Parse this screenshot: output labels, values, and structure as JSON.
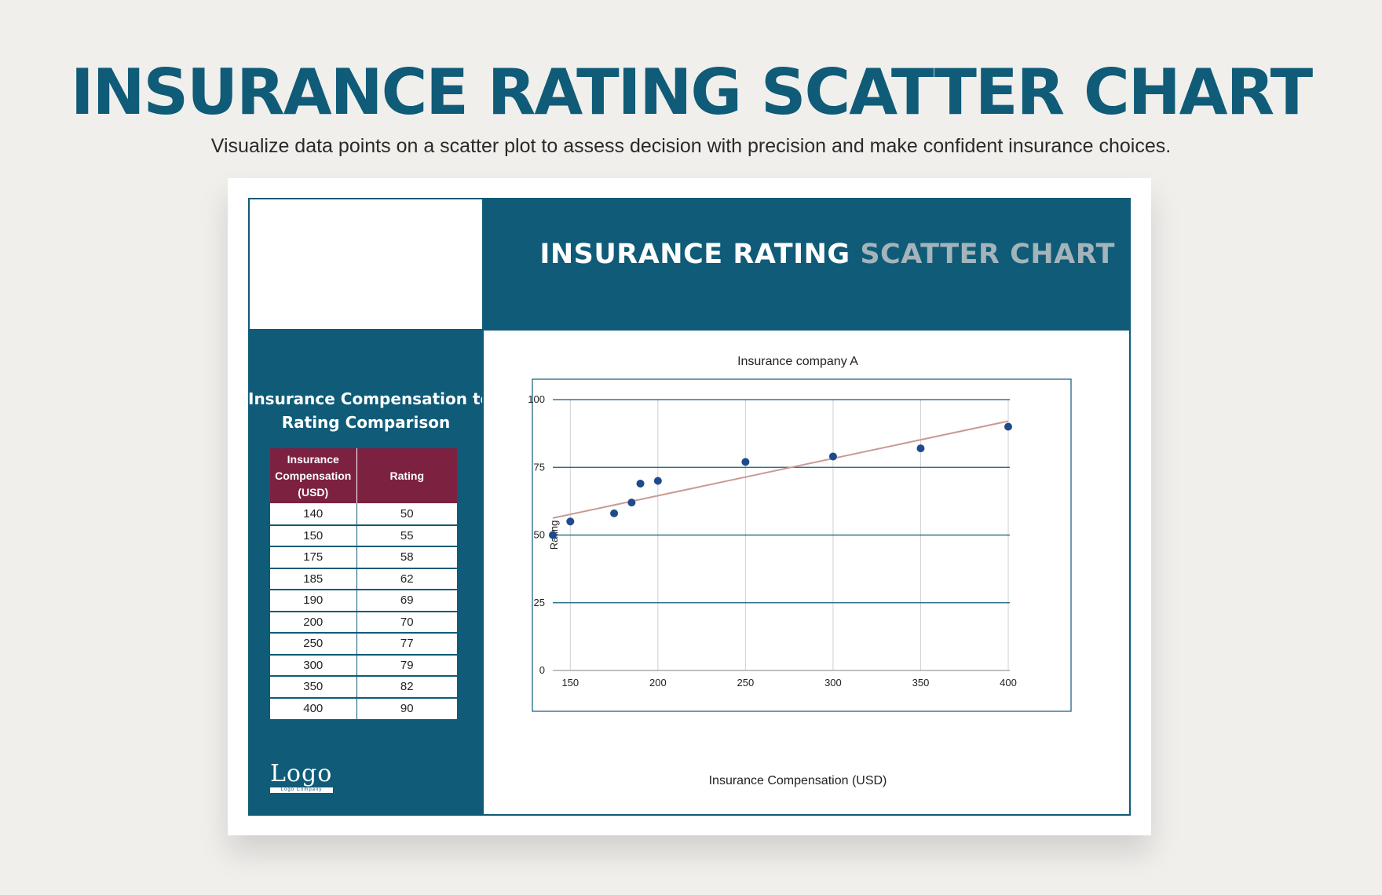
{
  "page": {
    "title": "INSURANCE RATING SCATTER CHART",
    "subtitle": "Visualize data points on a scatter plot to assess decision with precision and make confident insurance choices."
  },
  "sheet": {
    "header_title_main": "INSURANCE RATING",
    "header_title_accent": "SCATTER CHART",
    "table_title_line1": "Insurance Compensation to",
    "table_title_line2": "Rating Comparison",
    "table": {
      "headers": [
        "Insurance Compensation (USD)",
        "Rating"
      ],
      "rows": [
        [
          "140",
          "50"
        ],
        [
          "150",
          "55"
        ],
        [
          "175",
          "58"
        ],
        [
          "185",
          "62"
        ],
        [
          "190",
          "69"
        ],
        [
          "200",
          "70"
        ],
        [
          "250",
          "77"
        ],
        [
          "300",
          "79"
        ],
        [
          "350",
          "82"
        ],
        [
          "400",
          "90"
        ]
      ]
    },
    "logo": {
      "text": "Logo",
      "sub": "Logo Company"
    }
  },
  "colors": {
    "brand": "#0f5b78",
    "header_accent": "#a4b4bb",
    "table_header": "#7d2140",
    "point": "#1f4a8c",
    "trendline": "#c99a94"
  },
  "chart_data": {
    "type": "scatter",
    "title": "Insurance company A",
    "xlabel": "Insurance Compensation (USD)",
    "ylabel": "Rating",
    "x": [
      140,
      150,
      175,
      185,
      190,
      200,
      250,
      300,
      350,
      400
    ],
    "y": [
      50,
      55,
      58,
      62,
      69,
      70,
      77,
      79,
      82,
      90
    ],
    "xlim": [
      140,
      400
    ],
    "ylim": [
      0,
      100
    ],
    "xticks": [
      150,
      200,
      250,
      300,
      350,
      400
    ],
    "yticks": [
      0,
      25,
      50,
      75,
      100
    ],
    "trendline": {
      "type": "linear",
      "visible": true
    },
    "grid": true,
    "legend": "none"
  }
}
